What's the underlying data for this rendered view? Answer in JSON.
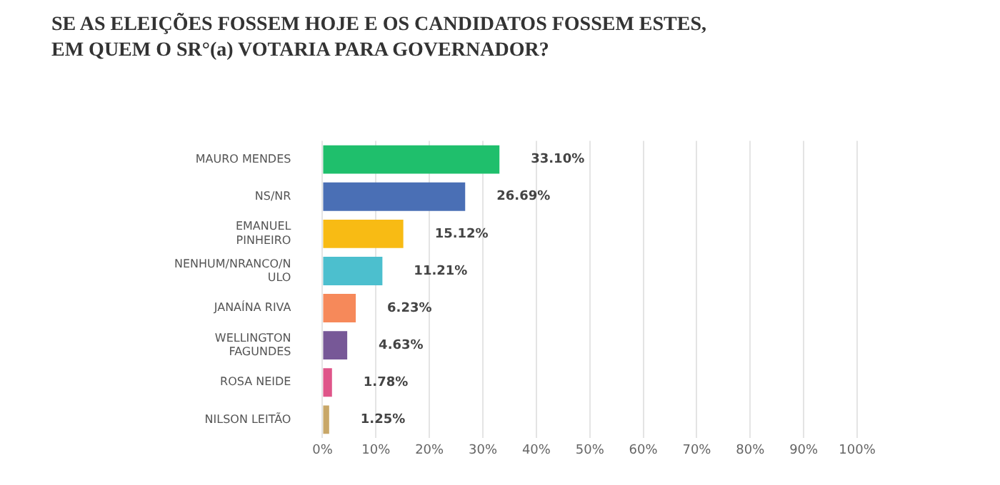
{
  "chart_data": {
    "type": "bar",
    "orientation": "horizontal",
    "title": "SE AS ELEIÇÕES FOSSEM HOJE E OS CANDIDATOS FOSSEM ESTES,\nEM QUEM O SR°(a) VOTARIA PARA GOVERNADOR?",
    "categories": [
      "MAURO MENDES",
      "NS/NR",
      "EMANUEL PINHEIRO",
      "NENHUM/NRANCO/NULO",
      "JANAÍNA RIVA",
      "WELLINGTON FAGUNDES",
      "ROSA NEIDE",
      "NILSON LEITÃO"
    ],
    "values": [
      33.1,
      26.69,
      15.12,
      11.21,
      6.23,
      4.63,
      1.78,
      1.25
    ],
    "value_labels": [
      "33.10%",
      "26.69%",
      "15.12%",
      "11.21%",
      "6.23%",
      "4.63%",
      "1.78%",
      "1.25%"
    ],
    "colors": [
      "#1fbf6c",
      "#4a6fb5",
      "#f8bb14",
      "#4cbfce",
      "#f6895a",
      "#775897",
      "#df5589",
      "#c8a768"
    ],
    "xlim": [
      0,
      100
    ],
    "xticks": [
      {
        "value": 0,
        "label": "0%"
      },
      {
        "value": 10,
        "label": "10%"
      },
      {
        "value": 20,
        "label": "20%"
      },
      {
        "value": 30,
        "label": "30%"
      },
      {
        "value": 40,
        "label": "40%"
      },
      {
        "value": 50,
        "label": "50%"
      },
      {
        "value": 60,
        "label": "60%"
      },
      {
        "value": 70,
        "label": "70%"
      },
      {
        "value": 80,
        "label": "80%"
      },
      {
        "value": 90,
        "label": "90%"
      },
      {
        "value": 100,
        "label": "100%"
      }
    ],
    "grid": "x",
    "legend": false
  }
}
